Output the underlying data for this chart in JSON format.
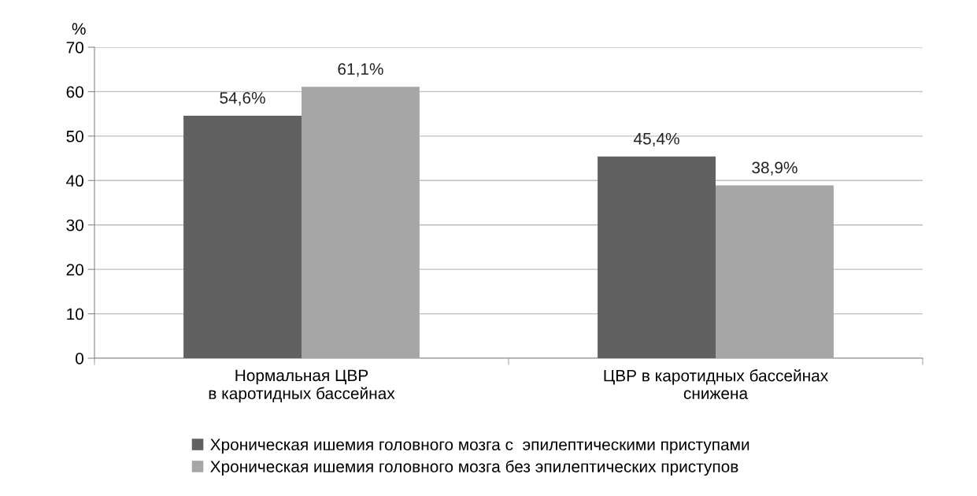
{
  "chart_data": {
    "type": "bar",
    "ylabel": "%",
    "categories": [
      "Нормальная ЦВР\nв каротидных бассейнах",
      "ЦВР в каротидных бассейнах\nснижена"
    ],
    "series": [
      {
        "name": "Хроническая ишемия головного мозга с  эпилептическими приступами",
        "color": "#616161",
        "values": [
          54.6,
          45.4
        ],
        "value_labels": [
          "54,6%",
          "45,4%"
        ]
      },
      {
        "name": "Хроническая ишемия головного мозга без эпилептических приступов",
        "color": "#a6a6a6",
        "values": [
          61.1,
          38.9
        ],
        "value_labels": [
          "61,1%",
          "38,9%"
        ]
      }
    ],
    "ylim": [
      0,
      70
    ],
    "yticks": [
      0,
      10,
      20,
      30,
      40,
      50,
      60,
      70
    ],
    "grid": "y",
    "legend": "bottom"
  }
}
